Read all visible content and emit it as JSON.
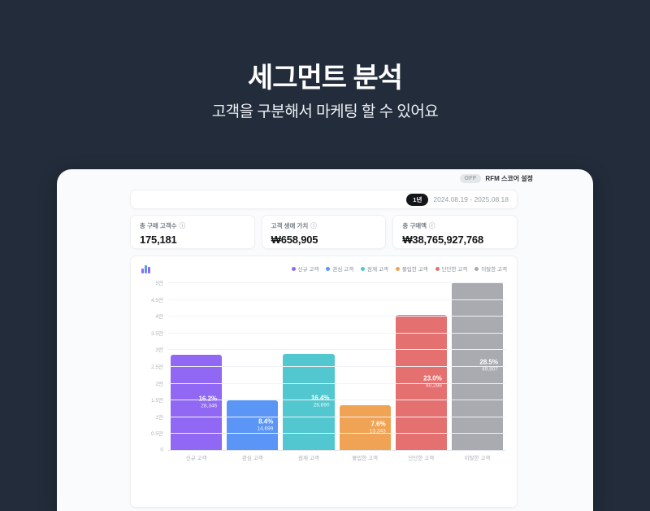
{
  "header": {
    "title": "세그먼트 분석",
    "subtitle": "고객을 구분해서 마케팅 할 수 있어요"
  },
  "toolbar": {
    "rfm_badge": "OFF",
    "rfm_label": "RFM 스코어 설정"
  },
  "filters": {
    "period_badge": "1년",
    "date_range": "2024.08.19 - 2025.08.18"
  },
  "stats": [
    {
      "label": "총 구매 고객수",
      "info_icon": "info-circle",
      "value": "175,181"
    },
    {
      "label": "고객 생애 가치",
      "info_icon": "info-circle",
      "value": "₩658,905"
    },
    {
      "label": "총 구매액",
      "info_icon": "info-circle",
      "value": "₩38,765,927,768"
    }
  ],
  "chart_data": {
    "type": "bar",
    "title": "",
    "categories": [
      "신규 고객",
      "관심 고객",
      "잠재 고객",
      "몰입한 고객",
      "단단한 고객",
      "이탈한 고객"
    ],
    "values": [
      28346,
      14699,
      28690,
      13343,
      40288,
      49907
    ],
    "value_labels": [
      "28,346",
      "14,699",
      "28,690",
      "13,343",
      "40,288",
      "49,907"
    ],
    "percent_labels": [
      "16.2%",
      "8.4%",
      "16.4%",
      "7.6%",
      "23.0%",
      "28.5%"
    ],
    "colors": [
      "#9168f3",
      "#5b96f7",
      "#52c7cf",
      "#f0a355",
      "#e57070",
      "#aaabb1"
    ],
    "legend": [
      "신규 고객",
      "관심 고객",
      "잠재 고객",
      "몰입한 고객",
      "단단한 고객",
      "이탈한 고객"
    ],
    "legend_position": "top-right",
    "grid": true,
    "xlabel": "",
    "ylabel": "",
    "ylim": [
      0,
      50000
    ],
    "y_ticks": [
      "5만",
      "4.5만",
      "4만",
      "3.5만",
      "3만",
      "2.5만",
      "2만",
      "1.5만",
      "1만",
      "0.5만",
      "0"
    ]
  },
  "ui_colors": {
    "background": "#222c3a",
    "card": "#fafbfd",
    "accent_purple": "#9168f3"
  }
}
